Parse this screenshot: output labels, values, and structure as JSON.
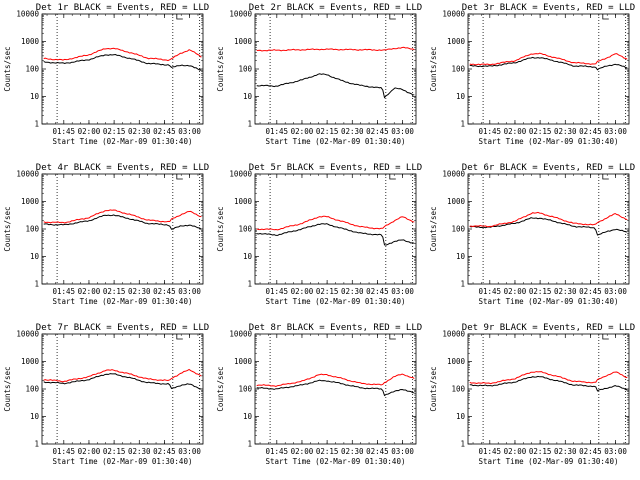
{
  "chart_data": [
    {
      "type": "line",
      "title": "Det 1r BLACK = Events, RED = LLD",
      "xlabel": "Start Time (02-Mar-09 01:30:40)",
      "ylabel": "Counts/sec",
      "y_scale": "log",
      "ylim": [
        1,
        10000
      ],
      "xlim": [
        "01:32",
        "03:08"
      ],
      "x_ticks": [
        "01:45",
        "02:00",
        "02:15",
        "02:30",
        "02:45",
        "03:00"
      ],
      "y_ticks": [
        "1",
        "10",
        "100",
        "1000",
        "10000"
      ],
      "vlines": [
        "01:41",
        "02:50",
        "03:06"
      ],
      "x": [
        "01:33",
        "01:45",
        "02:00",
        "02:10",
        "02:15",
        "02:25",
        "02:35",
        "02:48",
        "02:49",
        "02:55",
        "03:00",
        "03:07"
      ],
      "series": [
        {
          "name": "BLACK = Events",
          "color": "#000000",
          "values": [
            180,
            160,
            220,
            330,
            330,
            240,
            160,
            140,
            110,
            140,
            130,
            90
          ]
        },
        {
          "name": "RED = LLD",
          "color": "#ff0000",
          "values": [
            240,
            210,
            330,
            560,
            560,
            390,
            250,
            210,
            230,
            380,
            500,
            280
          ]
        }
      ]
    },
    {
      "type": "line",
      "title": "Det 2r BLACK = Events, RED = LLD",
      "xlabel": "Start Time (02-Mar-09 01:30:40)",
      "ylabel": "Counts/sec",
      "y_scale": "log",
      "ylim": [
        1,
        10000
      ],
      "xlim": [
        "01:32",
        "03:08"
      ],
      "x_ticks": [
        "01:45",
        "02:00",
        "02:15",
        "02:30",
        "02:45",
        "03:00"
      ],
      "y_ticks": [
        "1",
        "10",
        "100",
        "1000",
        "10000"
      ],
      "vlines": [
        "01:41",
        "02:50",
        "03:06"
      ],
      "x": [
        "01:33",
        "01:45",
        "02:00",
        "02:10",
        "02:15",
        "02:25",
        "02:35",
        "02:48",
        "02:49",
        "02:55",
        "03:00",
        "03:07"
      ],
      "series": [
        {
          "name": "BLACK = Events",
          "color": "#000000",
          "values": [
            25,
            24,
            40,
            65,
            62,
            35,
            25,
            20,
            9,
            20,
            18,
            11
          ]
        },
        {
          "name": "RED = LLD",
          "color": "#ff0000",
          "values": [
            470,
            480,
            500,
            520,
            520,
            510,
            500,
            490,
            480,
            560,
            600,
            520
          ]
        }
      ]
    },
    {
      "type": "line",
      "title": "Det 3r BLACK = Events, RED = LLD",
      "xlabel": "Start Time (02-Mar-09 01:30:40)",
      "ylabel": "Counts/sec",
      "y_scale": "log",
      "ylim": [
        1,
        10000
      ],
      "xlim": [
        "01:32",
        "03:08"
      ],
      "x_ticks": [
        "01:45",
        "02:00",
        "02:15",
        "02:30",
        "02:45",
        "03:00"
      ],
      "y_ticks": [
        "1",
        "10",
        "100",
        "1000",
        "10000"
      ],
      "vlines": [
        "01:41",
        "02:50",
        "03:06"
      ],
      "x": [
        "01:33",
        "01:45",
        "02:00",
        "02:10",
        "02:15",
        "02:25",
        "02:35",
        "02:48",
        "02:49",
        "02:55",
        "03:00",
        "03:07"
      ],
      "series": [
        {
          "name": "BLACK = Events",
          "color": "#000000",
          "values": [
            130,
            125,
            170,
            260,
            260,
            190,
            130,
            120,
            95,
            130,
            150,
            110
          ]
        },
        {
          "name": "RED = LLD",
          "color": "#ff0000",
          "values": [
            150,
            145,
            200,
            360,
            360,
            250,
            170,
            150,
            180,
            260,
            360,
            230
          ]
        }
      ]
    },
    {
      "type": "line",
      "title": "Det 4r BLACK = Events, RED = LLD",
      "xlabel": "Start Time (02-Mar-09 01:30:40)",
      "ylabel": "Counts/sec",
      "y_scale": "log",
      "ylim": [
        1,
        10000
      ],
      "xlim": [
        "01:32",
        "03:08"
      ],
      "x_ticks": [
        "01:45",
        "02:00",
        "02:15",
        "02:30",
        "02:45",
        "03:00"
      ],
      "y_ticks": [
        "1",
        "10",
        "100",
        "1000",
        "10000"
      ],
      "vlines": [
        "01:41",
        "02:50",
        "03:06"
      ],
      "x": [
        "01:33",
        "01:45",
        "02:00",
        "02:10",
        "02:15",
        "02:25",
        "02:35",
        "02:48",
        "02:49",
        "02:55",
        "03:00",
        "03:07"
      ],
      "series": [
        {
          "name": "BLACK = Events",
          "color": "#000000",
          "values": [
            150,
            140,
            200,
            320,
            320,
            230,
            160,
            140,
            95,
            130,
            140,
            100
          ]
        },
        {
          "name": "RED = LLD",
          "color": "#ff0000",
          "values": [
            180,
            170,
            260,
            480,
            480,
            330,
            210,
            180,
            220,
            340,
            440,
            280
          ]
        }
      ]
    },
    {
      "type": "line",
      "title": "Det 5r BLACK = Events, RED = LLD",
      "xlabel": "Start Time (02-Mar-09 01:30:40)",
      "ylabel": "Counts/sec",
      "y_scale": "log",
      "ylim": [
        1,
        10000
      ],
      "xlim": [
        "01:32",
        "03:08"
      ],
      "x_ticks": [
        "01:45",
        "02:00",
        "02:15",
        "02:30",
        "02:45",
        "03:00"
      ],
      "y_ticks": [
        "1",
        "10",
        "100",
        "1000",
        "10000"
      ],
      "vlines": [
        "01:41",
        "02:50",
        "03:06"
      ],
      "x": [
        "01:33",
        "01:45",
        "02:00",
        "02:10",
        "02:15",
        "02:25",
        "02:35",
        "02:48",
        "02:49",
        "02:55",
        "03:00",
        "03:07"
      ],
      "series": [
        {
          "name": "BLACK = Events",
          "color": "#000000",
          "values": [
            70,
            60,
            100,
            150,
            150,
            100,
            70,
            60,
            25,
            35,
            40,
            30
          ]
        },
        {
          "name": "RED = LLD",
          "color": "#ff0000",
          "values": [
            100,
            95,
            160,
            280,
            280,
            180,
            120,
            100,
            120,
            200,
            280,
            180
          ]
        }
      ]
    },
    {
      "type": "line",
      "title": "Det 6r BLACK = Events, RED = LLD",
      "xlabel": "Start Time (02-Mar-09 01:30:40)",
      "ylabel": "Counts/sec",
      "y_scale": "log",
      "ylim": [
        1,
        10000
      ],
      "xlim": [
        "01:32",
        "03:08"
      ],
      "x_ticks": [
        "01:45",
        "02:00",
        "02:15",
        "02:30",
        "02:45",
        "03:00"
      ],
      "y_ticks": [
        "1",
        "10",
        "100",
        "1000",
        "10000"
      ],
      "vlines": [
        "01:41",
        "02:50",
        "03:06"
      ],
      "x": [
        "01:33",
        "01:45",
        "02:00",
        "02:10",
        "02:15",
        "02:25",
        "02:35",
        "02:48",
        "02:49",
        "02:55",
        "03:00",
        "03:07"
      ],
      "series": [
        {
          "name": "BLACK = Events",
          "color": "#000000",
          "values": [
            120,
            115,
            160,
            250,
            250,
            180,
            125,
            110,
            60,
            80,
            100,
            75
          ]
        },
        {
          "name": "RED = LLD",
          "color": "#ff0000",
          "values": [
            130,
            125,
            190,
            380,
            380,
            250,
            160,
            140,
            170,
            260,
            360,
            220
          ]
        }
      ]
    },
    {
      "type": "line",
      "title": "Det 7r BLACK = Events, RED = LLD",
      "xlabel": "Start Time (02-Mar-09 01:30:40)",
      "ylabel": "Counts/sec",
      "y_scale": "log",
      "ylim": [
        1,
        10000
      ],
      "xlim": [
        "01:32",
        "03:08"
      ],
      "x_ticks": [
        "01:45",
        "02:00",
        "02:15",
        "02:30",
        "02:45",
        "03:00"
      ],
      "y_ticks": [
        "1",
        "10",
        "100",
        "1000",
        "10000"
      ],
      "vlines": [
        "01:41",
        "02:50",
        "03:06"
      ],
      "x": [
        "01:33",
        "01:45",
        "02:00",
        "02:10",
        "02:15",
        "02:25",
        "02:35",
        "02:48",
        "02:49",
        "02:55",
        "03:00",
        "03:07"
      ],
      "series": [
        {
          "name": "BLACK = Events",
          "color": "#000000",
          "values": [
            180,
            160,
            220,
            350,
            350,
            250,
            170,
            150,
            100,
            140,
            150,
            100
          ]
        },
        {
          "name": "RED = LLD",
          "color": "#ff0000",
          "values": [
            220,
            190,
            280,
            480,
            480,
            340,
            230,
            200,
            240,
            380,
            500,
            300
          ]
        }
      ]
    },
    {
      "type": "line",
      "title": "Det 8r BLACK = Events, RED = LLD",
      "xlabel": "Start Time (02-Mar-09 01:30:40)",
      "ylabel": "Counts/sec",
      "y_scale": "log",
      "ylim": [
        1,
        10000
      ],
      "xlim": [
        "01:32",
        "03:08"
      ],
      "x_ticks": [
        "01:45",
        "02:00",
        "02:15",
        "02:30",
        "02:45",
        "03:00"
      ],
      "y_ticks": [
        "1",
        "10",
        "100",
        "1000",
        "10000"
      ],
      "vlines": [
        "01:41",
        "02:50",
        "03:06"
      ],
      "x": [
        "01:33",
        "01:45",
        "02:00",
        "02:10",
        "02:15",
        "02:25",
        "02:35",
        "02:48",
        "02:49",
        "02:55",
        "03:00",
        "03:07"
      ],
      "series": [
        {
          "name": "BLACK = Events",
          "color": "#000000",
          "values": [
            110,
            100,
            140,
            200,
            200,
            150,
            110,
            100,
            60,
            80,
            100,
            70
          ]
        },
        {
          "name": "RED = LLD",
          "color": "#ff0000",
          "values": [
            140,
            130,
            190,
            330,
            330,
            230,
            160,
            140,
            170,
            280,
            350,
            240
          ]
        }
      ]
    },
    {
      "type": "line",
      "title": "Det 9r BLACK = Events, RED = LLD",
      "xlabel": "Start Time (02-Mar-09 01:30:40)",
      "ylabel": "Counts/sec",
      "y_scale": "log",
      "ylim": [
        1,
        10000
      ],
      "xlim": [
        "01:32",
        "03:08"
      ],
      "x_ticks": [
        "01:45",
        "02:00",
        "02:15",
        "02:30",
        "02:45",
        "03:00"
      ],
      "y_ticks": [
        "1",
        "10",
        "100",
        "1000",
        "10000"
      ],
      "vlines": [
        "01:41",
        "02:50",
        "03:06"
      ],
      "x": [
        "01:33",
        "01:45",
        "02:00",
        "02:10",
        "02:15",
        "02:25",
        "02:35",
        "02:48",
        "02:49",
        "02:55",
        "03:00",
        "03:07"
      ],
      "series": [
        {
          "name": "BLACK = Events",
          "color": "#000000",
          "values": [
            140,
            130,
            180,
            280,
            280,
            200,
            140,
            125,
            85,
            110,
            130,
            95
          ]
        },
        {
          "name": "RED = LLD",
          "color": "#ff0000",
          "values": [
            170,
            160,
            240,
            420,
            420,
            290,
            190,
            170,
            210,
            320,
            420,
            260
          ]
        }
      ]
    }
  ]
}
